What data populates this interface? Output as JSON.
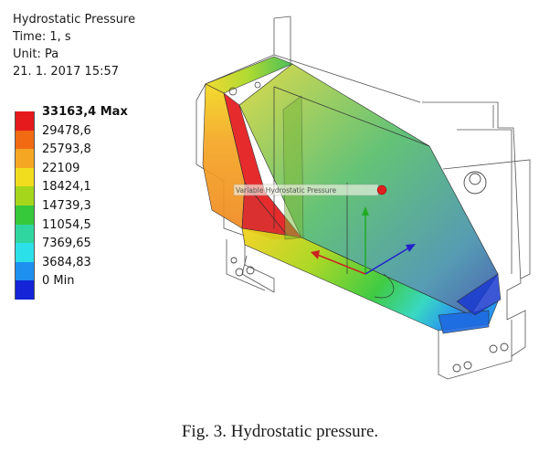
{
  "info": {
    "title": "Hydrostatic Pressure",
    "time": "Time: 1, s",
    "unit": "Unit: Pa",
    "date": "21. 1. 2017 15:57"
  },
  "legend": {
    "entries": [
      {
        "label": "33163,4 Max",
        "color": "#e41a1c",
        "bold": true
      },
      {
        "label": "29478,6",
        "color": "#f26a12",
        "bold": false
      },
      {
        "label": "25793,8",
        "color": "#f5a623",
        "bold": false
      },
      {
        "label": "22109",
        "color": "#f2dc1e",
        "bold": false
      },
      {
        "label": "18424,1",
        "color": "#a5d61c",
        "bold": false
      },
      {
        "label": "14739,3",
        "color": "#36c93a",
        "bold": false
      },
      {
        "label": "11054,5",
        "color": "#2fd6a0",
        "bold": false
      },
      {
        "label": "7369,65",
        "color": "#2be0e8",
        "bold": false
      },
      {
        "label": "3684,83",
        "color": "#1e90f0",
        "bold": false
      },
      {
        "label": "0 Min",
        "color": "#1424d6",
        "bold": true
      }
    ]
  },
  "probe": {
    "label": "Variable Hydrostatic Pressure"
  },
  "caption": "Fig. 3. Hydrostatic pressure."
}
